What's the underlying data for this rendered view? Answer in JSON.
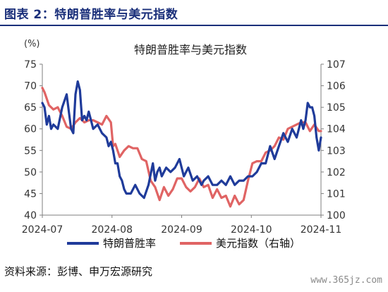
{
  "figure": {
    "label": "图表 2：特朗普胜率与美元指数",
    "source": "资料来源：彭博、申万宏源研究",
    "watermark": "www.365jz.com"
  },
  "chart_data": {
    "type": "line",
    "title": "特朗普胜率与美元指数",
    "y_unit": "(%)",
    "x_ticks": [
      "2024-07",
      "2024-08",
      "2024-09",
      "2024-10",
      "2024-11"
    ],
    "xlim": [
      "2024-07-01",
      "2024-11-04"
    ],
    "ylim_left": [
      40,
      75
    ],
    "yticks_left": [
      40,
      45,
      50,
      55,
      60,
      65,
      70,
      75
    ],
    "ylim_right": [
      100,
      107
    ],
    "yticks_right": [
      100,
      101,
      102,
      103,
      104,
      105,
      106,
      107
    ],
    "legend_position": "bottom",
    "grid": false,
    "colors": {
      "trump": "#1f3b9a",
      "dxy": "#e06464",
      "axis": "#7f7f7f",
      "text": "#333333"
    },
    "series": [
      {
        "name": "特朗普胜率",
        "axis": "left",
        "x": [
          "2024-07-01",
          "2024-07-02",
          "2024-07-03",
          "2024-07-04",
          "2024-07-05",
          "2024-07-06",
          "2024-07-08",
          "2024-07-10",
          "2024-07-12",
          "2024-07-13",
          "2024-07-14",
          "2024-07-15",
          "2024-07-16",
          "2024-07-17",
          "2024-07-18",
          "2024-07-19",
          "2024-07-20",
          "2024-07-21",
          "2024-07-22",
          "2024-07-23",
          "2024-07-24",
          "2024-07-26",
          "2024-07-28",
          "2024-07-30",
          "2024-07-31",
          "2024-08-01",
          "2024-08-02",
          "2024-08-03",
          "2024-08-04",
          "2024-08-05",
          "2024-08-06",
          "2024-08-07",
          "2024-08-08",
          "2024-08-10",
          "2024-08-12",
          "2024-08-14",
          "2024-08-16",
          "2024-08-18",
          "2024-08-20",
          "2024-08-21",
          "2024-08-22",
          "2024-08-23",
          "2024-08-24",
          "2024-08-25",
          "2024-08-26",
          "2024-08-28",
          "2024-08-30",
          "2024-09-01",
          "2024-09-03",
          "2024-09-05",
          "2024-09-07",
          "2024-09-09",
          "2024-09-10",
          "2024-09-11",
          "2024-09-12",
          "2024-09-14",
          "2024-09-16",
          "2024-09-18",
          "2024-09-20",
          "2024-09-22",
          "2024-09-24",
          "2024-09-26",
          "2024-09-28",
          "2024-09-30",
          "2024-10-02",
          "2024-10-04",
          "2024-10-06",
          "2024-10-08",
          "2024-10-10",
          "2024-10-12",
          "2024-10-14",
          "2024-10-16",
          "2024-10-18",
          "2024-10-20",
          "2024-10-22",
          "2024-10-24",
          "2024-10-26",
          "2024-10-27",
          "2024-10-28",
          "2024-10-29",
          "2024-10-30",
          "2024-10-31",
          "2024-11-01",
          "2024-11-02",
          "2024-11-03",
          "2024-11-04"
        ],
        "y": [
          66,
          65,
          61,
          63,
          60,
          61,
          60,
          65,
          68,
          64,
          60,
          59,
          68,
          71,
          69,
          62,
          63,
          62,
          64,
          62,
          60,
          61,
          59,
          58,
          56,
          57,
          55,
          52,
          52,
          49,
          48,
          46,
          45,
          45,
          47,
          45,
          44,
          47,
          52,
          48,
          50,
          51,
          49,
          50,
          51,
          50,
          51,
          53,
          49,
          51,
          48,
          49,
          48,
          47,
          48,
          49,
          47,
          47,
          48,
          47,
          49,
          47,
          48,
          48,
          49,
          49,
          50,
          52,
          52,
          56,
          53,
          56,
          59,
          57,
          60,
          58,
          62,
          60,
          62,
          66,
          65,
          65,
          63,
          58,
          55,
          58
        ]
      },
      {
        "name": "美元指数（右轴）",
        "axis": "right",
        "x": [
          "2024-07-01",
          "2024-07-02",
          "2024-07-04",
          "2024-07-06",
          "2024-07-08",
          "2024-07-10",
          "2024-07-12",
          "2024-07-14",
          "2024-07-16",
          "2024-07-18",
          "2024-07-20",
          "2024-07-22",
          "2024-07-24",
          "2024-07-26",
          "2024-07-28",
          "2024-07-30",
          "2024-08-01",
          "2024-08-02",
          "2024-08-03",
          "2024-08-05",
          "2024-08-07",
          "2024-08-09",
          "2024-08-11",
          "2024-08-13",
          "2024-08-15",
          "2024-08-17",
          "2024-08-19",
          "2024-08-21",
          "2024-08-23",
          "2024-08-25",
          "2024-08-27",
          "2024-08-29",
          "2024-08-31",
          "2024-09-02",
          "2024-09-04",
          "2024-09-06",
          "2024-09-08",
          "2024-09-10",
          "2024-09-12",
          "2024-09-14",
          "2024-09-16",
          "2024-09-18",
          "2024-09-20",
          "2024-09-22",
          "2024-09-24",
          "2024-09-26",
          "2024-09-28",
          "2024-09-30",
          "2024-10-02",
          "2024-10-04",
          "2024-10-06",
          "2024-10-08",
          "2024-10-10",
          "2024-10-12",
          "2024-10-14",
          "2024-10-16",
          "2024-10-18",
          "2024-10-20",
          "2024-10-22",
          "2024-10-24",
          "2024-10-26",
          "2024-10-28",
          "2024-10-30",
          "2024-11-01",
          "2024-11-03",
          "2024-11-04"
        ],
        "y": [
          105.9,
          105.7,
          105.1,
          104.9,
          105.0,
          104.6,
          104.1,
          104.0,
          104.3,
          104.5,
          104.3,
          104.4,
          104.4,
          104.3,
          104.2,
          104.6,
          104.3,
          103.2,
          103.3,
          102.7,
          103.0,
          103.2,
          103.1,
          103.1,
          102.6,
          102.5,
          101.6,
          101.3,
          100.7,
          101.3,
          100.9,
          101.2,
          101.7,
          101.7,
          101.3,
          101.1,
          101.3,
          101.7,
          101.3,
          101.4,
          100.8,
          101.2,
          100.8,
          100.9,
          100.4,
          100.9,
          100.5,
          100.7,
          101.6,
          102.4,
          102.5,
          102.5,
          102.9,
          103.0,
          103.2,
          103.6,
          103.5,
          104.0,
          104.1,
          104.2,
          104.3,
          104.3,
          103.9,
          104.2,
          103.9,
          103.9
        ]
      }
    ]
  }
}
